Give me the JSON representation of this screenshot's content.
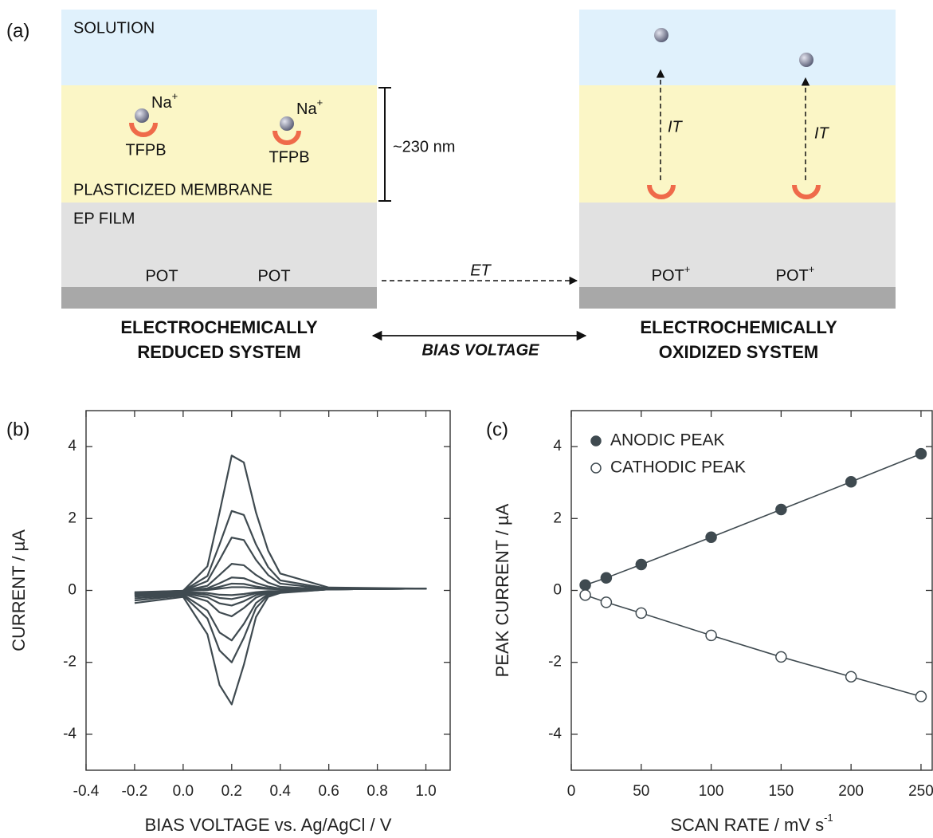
{
  "diagram": {
    "panel": "(a)",
    "layers": {
      "solution": "SOLUTION",
      "membrane": "PLASTICIZED MEMBRANE",
      "film": "EP FILM"
    },
    "reduced": {
      "ions": [
        {
          "label": "Na",
          "charge": "+",
          "anion": "TFPB"
        },
        {
          "label": "Na",
          "charge": "+",
          "anion": "TFPB"
        }
      ],
      "pot": [
        "POT",
        "POT"
      ],
      "title": [
        "ELECTROCHEMICALLY",
        "REDUCED SYSTEM"
      ]
    },
    "oxidized": {
      "transfer": [
        "IT",
        "IT"
      ],
      "pot": [
        {
          "label": "POT",
          "charge": "+"
        },
        {
          "label": "POT",
          "charge": "+"
        }
      ],
      "title": [
        "ELECTROCHEMICALLY",
        "OXIDIZED SYSTEM"
      ]
    },
    "thickness": "~230 nm",
    "electron_transfer": "ET",
    "bias": "BIAS VOLTAGE"
  },
  "chart_data": [
    {
      "type": "line",
      "panel": "(b)",
      "x_label": "BIAS VOLTAGE vs. Ag/AgCl / V",
      "y_label": "CURRENT / µA",
      "x": [
        -0.2,
        0,
        0.1,
        0.15,
        0.2,
        0.25,
        0.3,
        0.35,
        0.4,
        0.6,
        1.0,
        0.6,
        0.4,
        0.35,
        0.3,
        0.25,
        0.2,
        0.15,
        0.1,
        0,
        -0.2
      ],
      "series": [
        {
          "color": "#3f4a50",
          "values": [
            -0.15,
            -0.01,
            0.67,
            2.17,
            3.75,
            3.56,
            2.17,
            1.11,
            0.47,
            0.08,
            0.05,
            0.03,
            -0.07,
            -0.18,
            -0.74,
            -2.07,
            -3.17,
            -2.63,
            -1.22,
            -0.18,
            -0.35
          ]
        },
        {
          "color": "#3f4a50",
          "values": [
            -0.12,
            -0.01,
            0.4,
            1.28,
            2.21,
            2.1,
            1.28,
            0.65,
            0.28,
            0.05,
            0.05,
            0.03,
            -0.06,
            -0.13,
            -0.49,
            -1.32,
            -2.0,
            -1.67,
            -0.78,
            -0.14,
            -0.28
          ]
        },
        {
          "color": "#3f4a50",
          "values": [
            -0.1,
            -0.01,
            0.26,
            0.85,
            1.47,
            1.4,
            0.85,
            0.43,
            0.19,
            0.04,
            0.05,
            0.03,
            -0.05,
            -0.1,
            -0.35,
            -0.93,
            -1.39,
            -1.17,
            -0.56,
            -0.12,
            -0.22
          ]
        },
        {
          "color": "#3f4a50",
          "values": [
            -0.08,
            -0.01,
            0.13,
            0.43,
            0.74,
            0.7,
            0.43,
            0.22,
            0.1,
            0.03,
            0.05,
            0.03,
            -0.04,
            -0.07,
            -0.2,
            -0.49,
            -0.72,
            -0.61,
            -0.3,
            -0.1,
            -0.17
          ]
        },
        {
          "color": "#3f4a50",
          "values": [
            -0.07,
            -0.01,
            0.06,
            0.2,
            0.36,
            0.34,
            0.21,
            0.11,
            0.05,
            0.03,
            0.05,
            0.03,
            -0.03,
            -0.05,
            -0.13,
            -0.3,
            -0.42,
            -0.36,
            -0.19,
            -0.08,
            -0.14
          ]
        },
        {
          "color": "#3f4a50",
          "values": [
            -0.06,
            -0.01,
            0.03,
            0.1,
            0.19,
            0.18,
            0.11,
            0.06,
            0.04,
            0.03,
            0.05,
            0.03,
            -0.02,
            -0.04,
            -0.08,
            -0.17,
            -0.24,
            -0.21,
            -0.12,
            -0.06,
            -0.1
          ]
        },
        {
          "color": "#3f4a50",
          "values": [
            -0.05,
            -0.01,
            0.01,
            0.05,
            0.09,
            0.09,
            0.06,
            0.04,
            0.03,
            0.03,
            0.05,
            0.03,
            -0.01,
            -0.02,
            -0.05,
            -0.1,
            -0.13,
            -0.12,
            -0.07,
            -0.04,
            -0.07
          ]
        }
      ],
      "xlim": [
        -0.4,
        1.1
      ],
      "xticks": [
        -0.4,
        -0.2,
        {
          "value": 0,
          "label": "0.0"
        },
        0.2,
        0.4,
        0.6,
        0.8,
        {
          "value": 1,
          "label": "1.0"
        }
      ],
      "ylim": [
        -5,
        5
      ],
      "yticks": [
        -4,
        -2,
        0,
        2,
        4
      ]
    },
    {
      "type": "scatter",
      "panel": "(c)",
      "x_label": "SCAN RATE / mV s",
      "x_label_sup": "-1",
      "y_label": "PEAK CURRENT / µA",
      "x": [
        10,
        25,
        50,
        100,
        150,
        200,
        250
      ],
      "series": [
        {
          "name": "ANODIC PEAK",
          "color": "#3f4a50",
          "marker": "filled",
          "values": [
            0.15,
            0.35,
            0.72,
            1.48,
            2.25,
            3.02,
            3.8
          ]
        },
        {
          "name": "CATHODIC PEAK",
          "color": "#3f4a50",
          "marker": "open",
          "values": [
            -0.13,
            -0.33,
            -0.63,
            -1.25,
            -1.85,
            -2.4,
            -2.95
          ]
        }
      ],
      "legend": "upper left",
      "xlim": [
        0,
        258
      ],
      "xticks": [
        0,
        50,
        100,
        150,
        200,
        250
      ],
      "ylim": [
        -5,
        5
      ],
      "yticks": [
        -4,
        -2,
        0,
        2,
        4
      ]
    }
  ]
}
